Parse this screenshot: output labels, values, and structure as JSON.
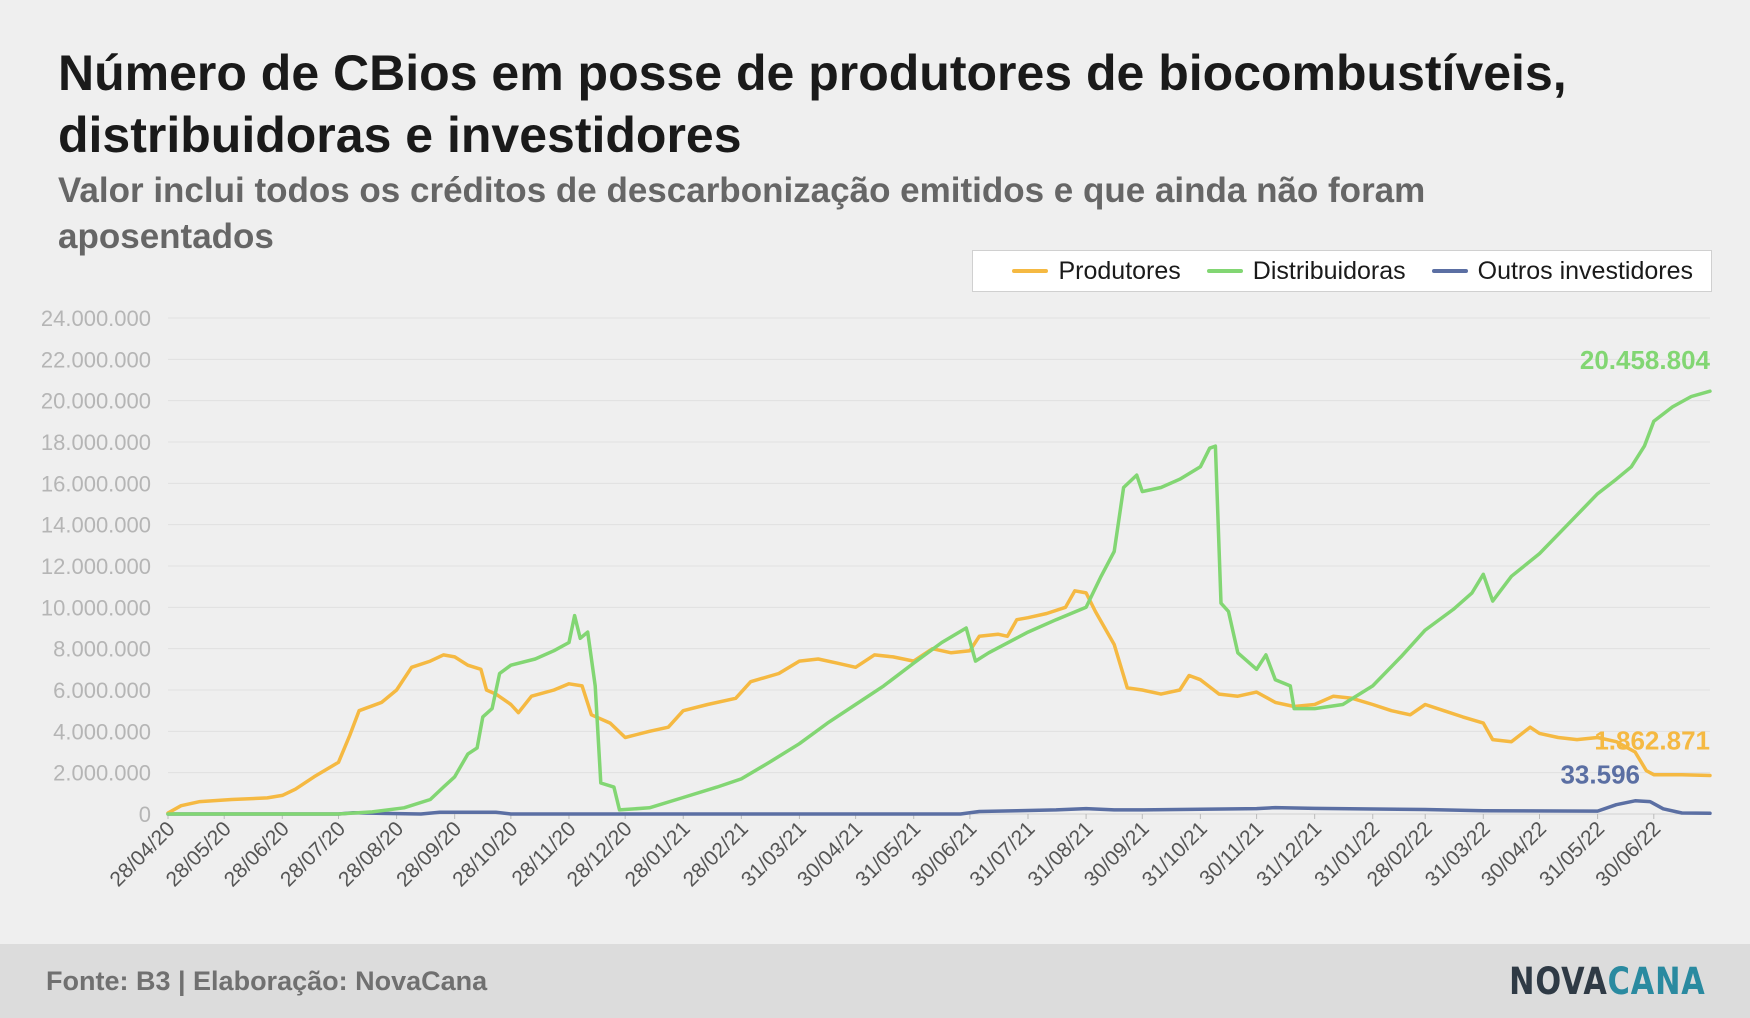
{
  "header": {
    "title": "Número de CBios em posse de produtores de biocombustíveis, distribuidoras e investidores",
    "subtitle": "Valor inclui todos os créditos de descarbonização emitidos e que ainda não foram aposentados"
  },
  "footer": {
    "source": "Fonte: B3 | Elaboração: NovaCana",
    "logo_part1": "NOVA",
    "logo_part2": "CANA"
  },
  "colors": {
    "produtores": "#f5b942",
    "distribuidoras": "#82d673",
    "outros": "#5b6fa3",
    "grid": "#e0e0e0",
    "tick_text": "#b5b5b5",
    "axis_text": "#555555"
  },
  "chart_data": {
    "type": "line",
    "title": "Número de CBios em posse de produtores de biocombustíveis, distribuidoras e investidores",
    "subtitle": "Valor inclui todos os créditos de descarbonização emitidos e que ainda não foram aposentados",
    "xlabel": "",
    "ylabel": "",
    "ylim": [
      0,
      24000000
    ],
    "y_ticks": [
      "0",
      "2.000.000",
      "4.000.000",
      "6.000.000",
      "8.000.000",
      "10.000.000",
      "12.000.000",
      "14.000.000",
      "16.000.000",
      "18.000.000",
      "20.000.000",
      "22.000.000",
      "24.000.000"
    ],
    "x_range": [
      "2020-04-28",
      "2022-07-30"
    ],
    "x_ticks": [
      "28/04/20",
      "28/05/20",
      "28/06/20",
      "28/07/20",
      "28/08/20",
      "28/09/20",
      "28/10/20",
      "28/11/20",
      "28/12/20",
      "28/01/21",
      "28/02/21",
      "31/03/21",
      "30/04/21",
      "31/05/21",
      "30/06/21",
      "31/07/21",
      "31/08/21",
      "30/09/21",
      "31/10/21",
      "30/11/21",
      "31/12/21",
      "31/01/22",
      "28/02/22",
      "31/03/22",
      "30/04/22",
      "31/05/22",
      "30/06/22"
    ],
    "grid": true,
    "legend_position": "top-right",
    "series": [
      {
        "name": "Produtores",
        "end_label": "1.862.871",
        "points": [
          [
            "2020-04-28",
            50000
          ],
          [
            "2020-05-05",
            400000
          ],
          [
            "2020-05-15",
            600000
          ],
          [
            "2020-06-01",
            700000
          ],
          [
            "2020-06-20",
            780000
          ],
          [
            "2020-06-28",
            900000
          ],
          [
            "2020-07-05",
            1200000
          ],
          [
            "2020-07-15",
            1800000
          ],
          [
            "2020-07-28",
            2500000
          ],
          [
            "2020-08-03",
            3800000
          ],
          [
            "2020-08-08",
            5000000
          ],
          [
            "2020-08-20",
            5400000
          ],
          [
            "2020-08-28",
            6000000
          ],
          [
            "2020-09-05",
            7100000
          ],
          [
            "2020-09-15",
            7400000
          ],
          [
            "2020-09-22",
            7700000
          ],
          [
            "2020-09-28",
            7600000
          ],
          [
            "2020-10-05",
            7200000
          ],
          [
            "2020-10-12",
            7000000
          ],
          [
            "2020-10-15",
            6000000
          ],
          [
            "2020-10-20",
            5800000
          ],
          [
            "2020-10-28",
            5300000
          ],
          [
            "2020-11-01",
            4900000
          ],
          [
            "2020-11-08",
            5700000
          ],
          [
            "2020-11-20",
            6000000
          ],
          [
            "2020-11-28",
            6300000
          ],
          [
            "2020-12-05",
            6200000
          ],
          [
            "2020-12-10",
            4800000
          ],
          [
            "2020-12-20",
            4400000
          ],
          [
            "2020-12-28",
            3700000
          ],
          [
            "2021-01-10",
            4000000
          ],
          [
            "2021-01-20",
            4200000
          ],
          [
            "2021-01-28",
            5000000
          ],
          [
            "2021-02-10",
            5300000
          ],
          [
            "2021-02-25",
            5600000
          ],
          [
            "2021-03-05",
            6400000
          ],
          [
            "2021-03-20",
            6800000
          ],
          [
            "2021-03-31",
            7400000
          ],
          [
            "2021-04-10",
            7500000
          ],
          [
            "2021-04-20",
            7300000
          ],
          [
            "2021-04-30",
            7100000
          ],
          [
            "2021-05-10",
            7700000
          ],
          [
            "2021-05-20",
            7600000
          ],
          [
            "2021-05-31",
            7400000
          ],
          [
            "2021-06-10",
            8000000
          ],
          [
            "2021-06-20",
            7800000
          ],
          [
            "2021-06-30",
            7900000
          ],
          [
            "2021-07-05",
            8600000
          ],
          [
            "2021-07-15",
            8700000
          ],
          [
            "2021-07-20",
            8600000
          ],
          [
            "2021-07-25",
            9400000
          ],
          [
            "2021-07-31",
            9500000
          ],
          [
            "2021-08-10",
            9700000
          ],
          [
            "2021-08-20",
            10000000
          ],
          [
            "2021-08-25",
            10800000
          ],
          [
            "2021-08-31",
            10700000
          ],
          [
            "2021-09-05",
            9800000
          ],
          [
            "2021-09-15",
            8200000
          ],
          [
            "2021-09-22",
            6100000
          ],
          [
            "2021-09-30",
            6000000
          ],
          [
            "2021-10-10",
            5800000
          ],
          [
            "2021-10-20",
            6000000
          ],
          [
            "2021-10-25",
            6700000
          ],
          [
            "2021-10-31",
            6500000
          ],
          [
            "2021-11-10",
            5800000
          ],
          [
            "2021-11-20",
            5700000
          ],
          [
            "2021-11-30",
            5900000
          ],
          [
            "2021-12-10",
            5400000
          ],
          [
            "2021-12-20",
            5200000
          ],
          [
            "2021-12-31",
            5300000
          ],
          [
            "2022-01-10",
            5700000
          ],
          [
            "2022-01-20",
            5600000
          ],
          [
            "2022-01-31",
            5300000
          ],
          [
            "2022-02-10",
            5000000
          ],
          [
            "2022-02-20",
            4800000
          ],
          [
            "2022-02-28",
            5300000
          ],
          [
            "2022-03-10",
            5000000
          ],
          [
            "2022-03-20",
            4700000
          ],
          [
            "2022-03-31",
            4400000
          ],
          [
            "2022-04-05",
            3600000
          ],
          [
            "2022-04-15",
            3500000
          ],
          [
            "2022-04-25",
            4200000
          ],
          [
            "2022-04-30",
            3900000
          ],
          [
            "2022-05-10",
            3700000
          ],
          [
            "2022-05-20",
            3600000
          ],
          [
            "2022-05-31",
            3700000
          ],
          [
            "2022-06-10",
            3500000
          ],
          [
            "2022-06-20",
            3000000
          ],
          [
            "2022-06-26",
            2100000
          ],
          [
            "2022-06-30",
            1900000
          ],
          [
            "2022-07-15",
            1900000
          ],
          [
            "2022-07-30",
            1862871
          ]
        ]
      },
      {
        "name": "Distribuidoras",
        "end_label": "20.458.804",
        "points": [
          [
            "2020-04-28",
            0
          ],
          [
            "2020-07-28",
            0
          ],
          [
            "2020-08-15",
            100000
          ],
          [
            "2020-09-01",
            300000
          ],
          [
            "2020-09-15",
            700000
          ],
          [
            "2020-09-22",
            1300000
          ],
          [
            "2020-09-28",
            1800000
          ],
          [
            "2020-10-05",
            2900000
          ],
          [
            "2020-10-10",
            3200000
          ],
          [
            "2020-10-13",
            4700000
          ],
          [
            "2020-10-18",
            5100000
          ],
          [
            "2020-10-22",
            6800000
          ],
          [
            "2020-10-28",
            7200000
          ],
          [
            "2020-11-10",
            7500000
          ],
          [
            "2020-11-20",
            7900000
          ],
          [
            "2020-11-28",
            8300000
          ],
          [
            "2020-12-01",
            9600000
          ],
          [
            "2020-12-04",
            8500000
          ],
          [
            "2020-12-08",
            8800000
          ],
          [
            "2020-12-12",
            6200000
          ],
          [
            "2020-12-15",
            1500000
          ],
          [
            "2020-12-22",
            1300000
          ],
          [
            "2020-12-25",
            200000
          ],
          [
            "2021-01-10",
            300000
          ],
          [
            "2021-01-28",
            800000
          ],
          [
            "2021-02-15",
            1300000
          ],
          [
            "2021-02-28",
            1700000
          ],
          [
            "2021-03-15",
            2500000
          ],
          [
            "2021-03-31",
            3400000
          ],
          [
            "2021-04-15",
            4400000
          ],
          [
            "2021-04-30",
            5300000
          ],
          [
            "2021-05-15",
            6200000
          ],
          [
            "2021-05-31",
            7300000
          ],
          [
            "2021-06-15",
            8300000
          ],
          [
            "2021-06-28",
            9000000
          ],
          [
            "2021-07-03",
            7400000
          ],
          [
            "2021-07-10",
            7800000
          ],
          [
            "2021-07-31",
            8800000
          ],
          [
            "2021-08-15",
            9400000
          ],
          [
            "2021-08-31",
            10000000
          ],
          [
            "2021-09-08",
            11500000
          ],
          [
            "2021-09-15",
            12700000
          ],
          [
            "2021-09-20",
            15800000
          ],
          [
            "2021-09-27",
            16400000
          ],
          [
            "2021-09-30",
            15600000
          ],
          [
            "2021-10-10",
            15800000
          ],
          [
            "2021-10-20",
            16200000
          ],
          [
            "2021-10-31",
            16800000
          ],
          [
            "2021-11-05",
            17700000
          ],
          [
            "2021-11-08",
            17800000
          ],
          [
            "2021-11-11",
            10200000
          ],
          [
            "2021-11-15",
            9800000
          ],
          [
            "2021-11-20",
            7800000
          ],
          [
            "2021-11-30",
            7000000
          ],
          [
            "2021-12-05",
            7700000
          ],
          [
            "2021-12-10",
            6500000
          ],
          [
            "2021-12-18",
            6200000
          ],
          [
            "2021-12-20",
            5100000
          ],
          [
            "2021-12-31",
            5100000
          ],
          [
            "2022-01-15",
            5300000
          ],
          [
            "2022-01-31",
            6200000
          ],
          [
            "2022-02-15",
            7600000
          ],
          [
            "2022-02-28",
            8900000
          ],
          [
            "2022-03-15",
            9900000
          ],
          [
            "2022-03-25",
            10700000
          ],
          [
            "2022-03-31",
            11600000
          ],
          [
            "2022-04-05",
            10300000
          ],
          [
            "2022-04-15",
            11500000
          ],
          [
            "2022-04-30",
            12600000
          ],
          [
            "2022-05-15",
            14000000
          ],
          [
            "2022-05-31",
            15500000
          ],
          [
            "2022-06-10",
            16200000
          ],
          [
            "2022-06-18",
            16800000
          ],
          [
            "2022-06-25",
            17800000
          ],
          [
            "2022-06-30",
            19000000
          ],
          [
            "2022-07-10",
            19700000
          ],
          [
            "2022-07-20",
            20200000
          ],
          [
            "2022-07-30",
            20458804
          ]
        ]
      },
      {
        "name": "Outros investidores",
        "end_label": "33.596",
        "points": [
          [
            "2020-04-28",
            0
          ],
          [
            "2020-07-28",
            0
          ],
          [
            "2020-08-05",
            60000
          ],
          [
            "2020-08-20",
            30000
          ],
          [
            "2020-09-10",
            0
          ],
          [
            "2020-09-20",
            80000
          ],
          [
            "2020-10-20",
            80000
          ],
          [
            "2020-10-28",
            0
          ],
          [
            "2021-06-25",
            0
          ],
          [
            "2021-07-05",
            120000
          ],
          [
            "2021-07-25",
            160000
          ],
          [
            "2021-08-15",
            200000
          ],
          [
            "2021-08-31",
            260000
          ],
          [
            "2021-09-15",
            200000
          ],
          [
            "2021-09-30",
            200000
          ],
          [
            "2021-10-31",
            230000
          ],
          [
            "2021-11-30",
            260000
          ],
          [
            "2021-12-10",
            310000
          ],
          [
            "2021-12-31",
            270000
          ],
          [
            "2022-01-31",
            240000
          ],
          [
            "2022-02-28",
            220000
          ],
          [
            "2022-03-31",
            160000
          ],
          [
            "2022-05-31",
            140000
          ],
          [
            "2022-06-10",
            450000
          ],
          [
            "2022-06-20",
            640000
          ],
          [
            "2022-06-28",
            600000
          ],
          [
            "2022-07-05",
            250000
          ],
          [
            "2022-07-15",
            50000
          ],
          [
            "2022-07-30",
            33596
          ]
        ]
      }
    ]
  }
}
